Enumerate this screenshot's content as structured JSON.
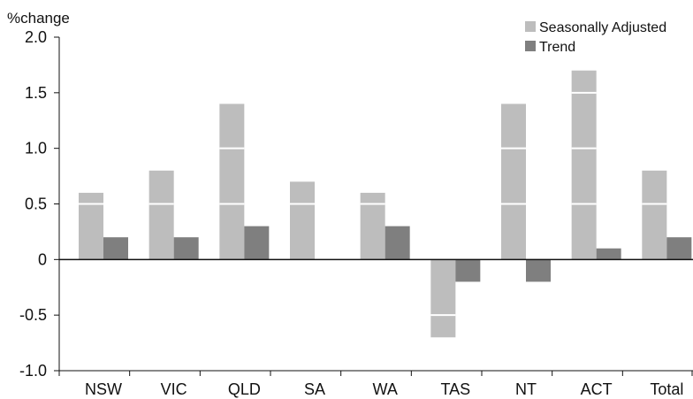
{
  "chart_data": {
    "type": "bar",
    "ylabel": "%change",
    "ylim": [
      -1.0,
      2.0
    ],
    "yticks": [
      2.0,
      1.5,
      1.0,
      0.5,
      0,
      -0.5,
      -1.0
    ],
    "ytick_labels": [
      "2.0",
      "1.5",
      "1.0",
      "0.5",
      "0",
      "-0.5",
      "-1.0"
    ],
    "categories": [
      "NSW",
      "VIC",
      "QLD",
      "SA",
      "WA",
      "TAS",
      "NT",
      "ACT",
      "Total"
    ],
    "series": [
      {
        "name": "Seasonally Adjusted",
        "color": "#bdbdbd",
        "values": [
          0.6,
          0.8,
          1.4,
          0.7,
          0.6,
          -0.7,
          1.4,
          1.7,
          0.8
        ]
      },
      {
        "name": "Trend",
        "color": "#7f7f7f",
        "values": [
          0.2,
          0.2,
          0.3,
          0.0,
          0.3,
          -0.2,
          -0.2,
          0.1,
          0.2
        ]
      }
    ],
    "grid": "white lines through bars",
    "legend_position": "top-right"
  }
}
